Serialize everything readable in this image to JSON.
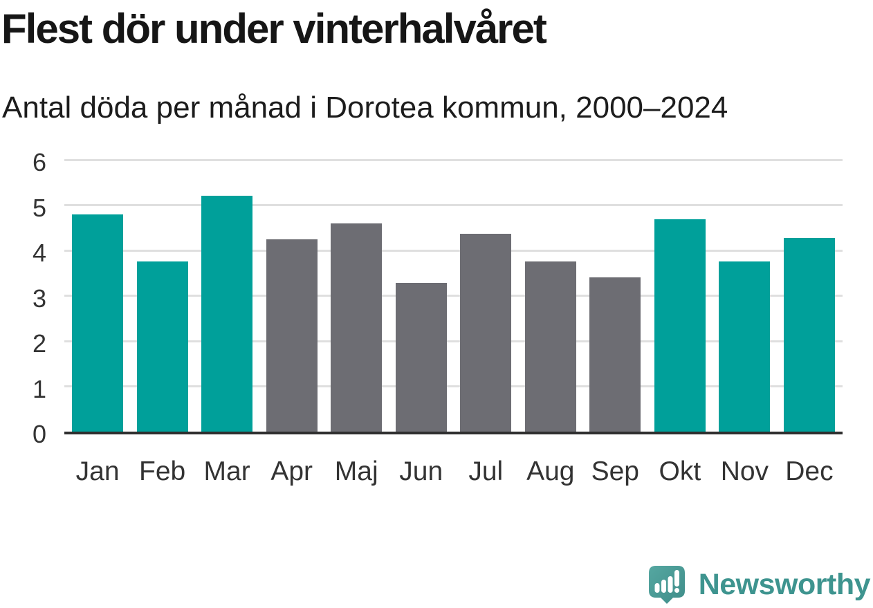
{
  "header": {
    "title": "Flest dör under vinterhalvåret",
    "subtitle": "Antal döda per månad i Dorotea kommun, 2000–2024"
  },
  "chart_data": {
    "type": "bar",
    "title": "Flest dör under vinterhalvåret",
    "subtitle": "Antal döda per månad i Dorotea kommun, 2000–2024",
    "categories": [
      "Jan",
      "Feb",
      "Mar",
      "Apr",
      "Maj",
      "Jun",
      "Jul",
      "Aug",
      "Sep",
      "Okt",
      "Nov",
      "Dec"
    ],
    "values": [
      4.8,
      3.76,
      5.2,
      4.24,
      4.6,
      3.28,
      4.36,
      3.76,
      3.4,
      4.68,
      3.76,
      4.28
    ],
    "ylim": [
      0,
      6
    ],
    "yticks": [
      0,
      1,
      2,
      3,
      4,
      5,
      6
    ],
    "grid": true,
    "legend": false,
    "xlabel": "",
    "ylabel": "",
    "point_colors": [
      "highlight",
      "highlight",
      "highlight",
      "base",
      "base",
      "base",
      "base",
      "base",
      "base",
      "highlight",
      "highlight",
      "highlight"
    ],
    "colors": {
      "highlight": "#00a09a",
      "base": "#6d6d73",
      "gridline": "#dfdfdf",
      "axis": "#2f2f2f",
      "tick_label": "#333333"
    }
  },
  "footer": {
    "brand": "Newsworthy",
    "brand_color": "#3e948f",
    "icon": "newsworthy-logo-icon"
  }
}
